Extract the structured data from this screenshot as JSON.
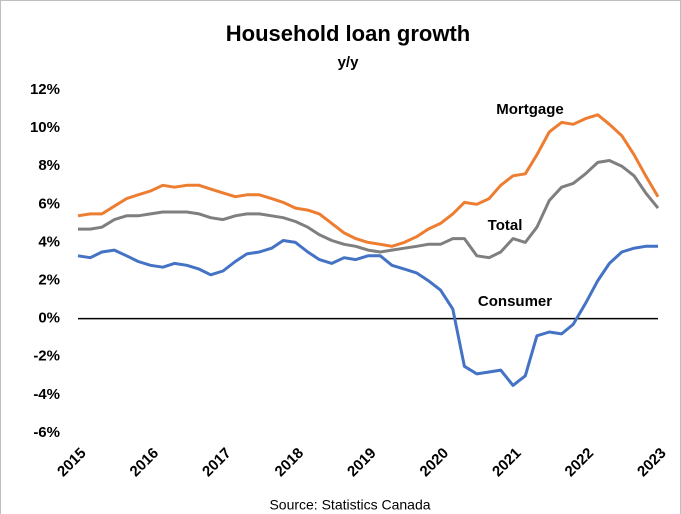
{
  "chart_data": {
    "type": "line",
    "title": "Household loan growth",
    "subtitle": "y/y",
    "source": "Source:  Statistics Canada",
    "x": [
      2015,
      2015.17,
      2015.33,
      2015.5,
      2015.67,
      2015.83,
      2016,
      2016.17,
      2016.33,
      2016.5,
      2016.67,
      2016.83,
      2017,
      2017.17,
      2017.33,
      2017.5,
      2017.67,
      2017.83,
      2018,
      2018.17,
      2018.33,
      2018.5,
      2018.67,
      2018.83,
      2019,
      2019.17,
      2019.33,
      2019.5,
      2019.67,
      2019.83,
      2020,
      2020.17,
      2020.33,
      2020.5,
      2020.67,
      2020.83,
      2021,
      2021.17,
      2021.33,
      2021.5,
      2021.67,
      2021.83,
      2022,
      2022.17,
      2022.33,
      2022.5,
      2022.67,
      2022.83,
      2023
    ],
    "series": [
      {
        "name": "Mortgage",
        "color": "#ED7D31",
        "values": [
          5.4,
          5.5,
          5.5,
          5.9,
          6.3,
          6.5,
          6.7,
          7.0,
          6.9,
          7.0,
          7.0,
          6.8,
          6.6,
          6.4,
          6.5,
          6.5,
          6.3,
          6.1,
          5.8,
          5.7,
          5.5,
          5.0,
          4.5,
          4.2,
          4.0,
          3.9,
          3.8,
          4.0,
          4.3,
          4.7,
          5.0,
          5.5,
          6.1,
          6.0,
          6.3,
          7.0,
          7.5,
          7.6,
          8.6,
          9.8,
          10.3,
          10.2,
          10.5,
          10.7,
          10.2,
          9.6,
          8.6,
          7.5,
          6.4
        ]
      },
      {
        "name": "Total",
        "color": "#7F7F7F",
        "values": [
          4.7,
          4.7,
          4.8,
          5.2,
          5.4,
          5.4,
          5.5,
          5.6,
          5.6,
          5.6,
          5.5,
          5.3,
          5.2,
          5.4,
          5.5,
          5.5,
          5.4,
          5.3,
          5.1,
          4.8,
          4.4,
          4.1,
          3.9,
          3.8,
          3.6,
          3.5,
          3.6,
          3.7,
          3.8,
          3.9,
          3.9,
          4.2,
          4.2,
          3.3,
          3.2,
          3.5,
          4.2,
          4.0,
          4.8,
          6.2,
          6.9,
          7.1,
          7.6,
          8.2,
          8.3,
          8.0,
          7.5,
          6.6,
          5.8
        ]
      },
      {
        "name": "Consumer",
        "color": "#4472C4",
        "values": [
          3.3,
          3.2,
          3.5,
          3.6,
          3.3,
          3.0,
          2.8,
          2.7,
          2.9,
          2.8,
          2.6,
          2.3,
          2.5,
          3.0,
          3.4,
          3.5,
          3.7,
          4.1,
          4.0,
          3.5,
          3.1,
          2.9,
          3.2,
          3.1,
          3.3,
          3.3,
          2.8,
          2.6,
          2.4,
          2.0,
          1.5,
          0.5,
          -2.5,
          -2.9,
          -2.8,
          -2.7,
          -3.5,
          -3.0,
          -0.9,
          -0.7,
          -0.8,
          -0.3,
          0.8,
          2.0,
          2.9,
          3.5,
          3.7,
          3.8,
          3.8
        ]
      }
    ],
    "xlim": [
      2015,
      2023
    ],
    "xticks": [
      2015,
      2016,
      2017,
      2018,
      2019,
      2020,
      2021,
      2022,
      2023
    ],
    "ylim": [
      -6,
      12
    ],
    "yticks": [
      {
        "value": -6,
        "label": "-6%"
      },
      {
        "value": -4,
        "label": "-4%"
      },
      {
        "value": -2,
        "label": "-2%"
      },
      {
        "value": 0,
        "label": "0%"
      },
      {
        "value": 2,
        "label": "2%"
      },
      {
        "value": 4,
        "label": "4%"
      },
      {
        "value": 6,
        "label": "6%"
      },
      {
        "value": 8,
        "label": "8%"
      },
      {
        "value": 10,
        "label": "10%"
      },
      {
        "value": 12,
        "label": "12%"
      }
    ],
    "grid": false
  }
}
